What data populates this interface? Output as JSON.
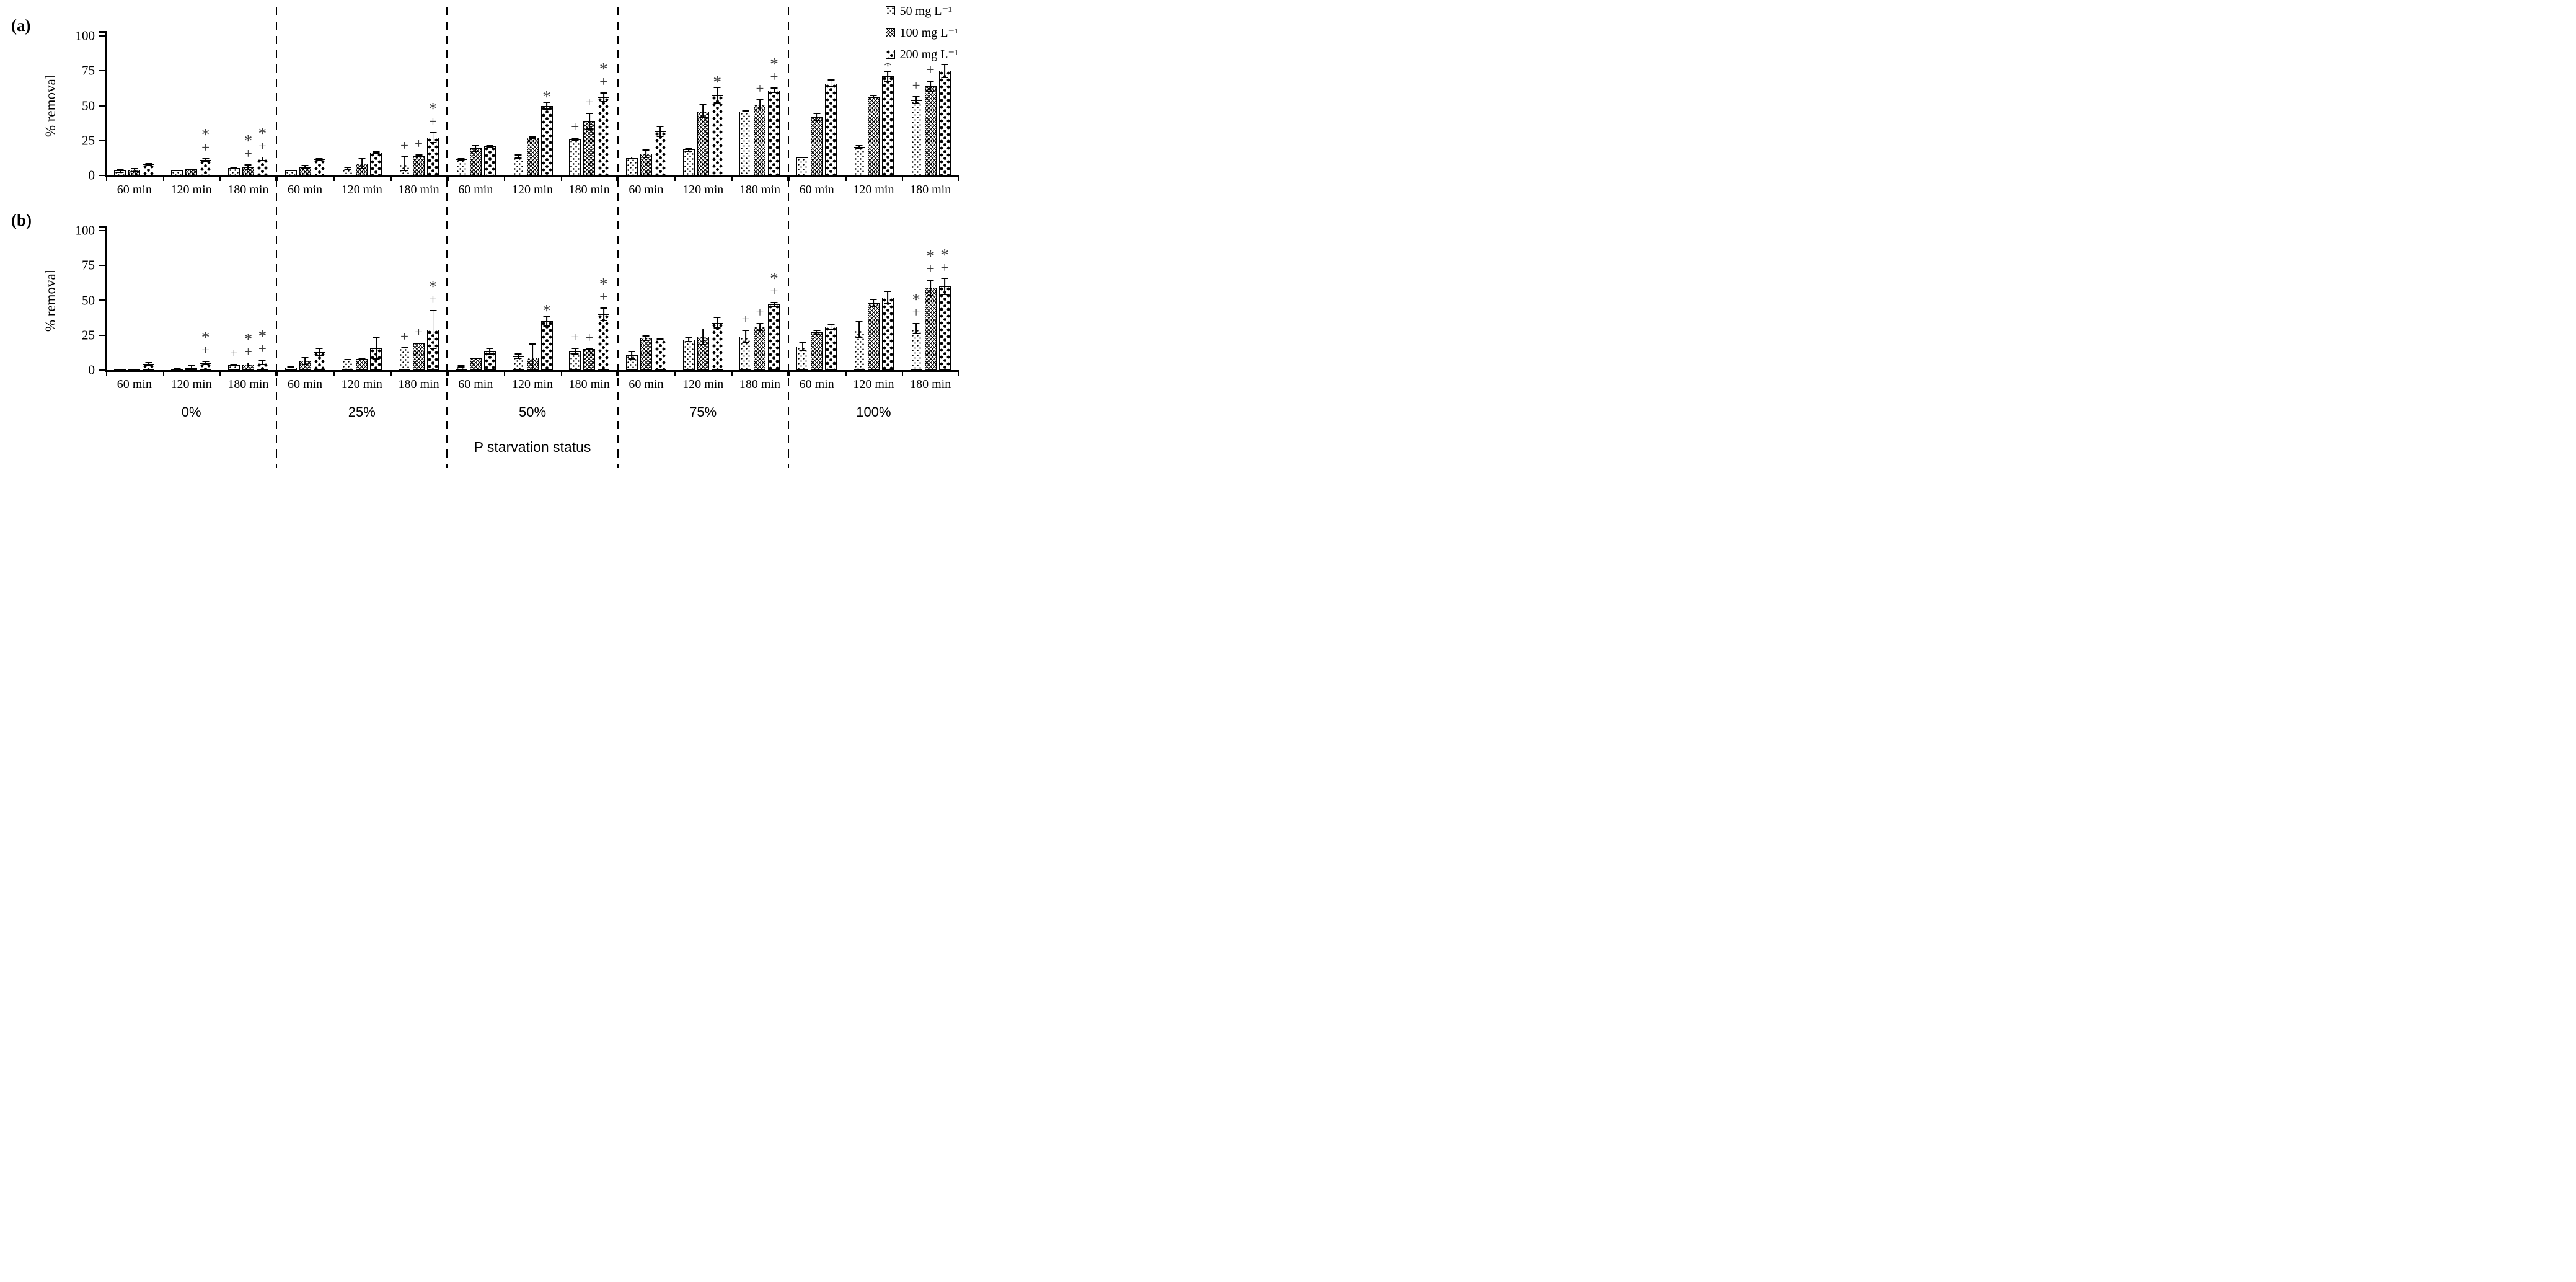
{
  "figure": {
    "panel_a_letter": "(a)",
    "panel_b_letter": "(b)"
  },
  "chart_data": {
    "type": "bar",
    "title": "",
    "ylabel": "% removal",
    "xlabel": "P starvation status",
    "ylim": [
      0,
      100
    ],
    "yticks": [
      0,
      25,
      50,
      75,
      100
    ],
    "grid": false,
    "legend_position": "top-right",
    "annotation_symbols": [
      "*",
      "+"
    ],
    "series": [
      {
        "label": "50 mg L⁻¹",
        "pattern": "small-dots"
      },
      {
        "label": "100 mg L⁻¹",
        "pattern": "crosshatch"
      },
      {
        "label": "200 mg L⁻¹",
        "pattern": "large-dots"
      }
    ],
    "time_labels": [
      "60 min",
      "120 min",
      "180 min"
    ],
    "statuses": [
      "0%",
      "25%",
      "50%",
      "75%",
      "100%"
    ],
    "panels": [
      {
        "id": "a",
        "label": "(a)",
        "sections": [
          {
            "status": "0%",
            "times": [
              {
                "time": "60 min",
                "bars": [
                  {
                    "v": 3.5,
                    "e": 1.5,
                    "a": ""
                  },
                  {
                    "v": 4,
                    "e": 1.5,
                    "a": ""
                  },
                  {
                    "v": 8,
                    "e": 1,
                    "a": ""
                  }
                ]
              },
              {
                "time": "120 min",
                "bars": [
                  {
                    "v": 3.5,
                    "e": 0.5,
                    "a": ""
                  },
                  {
                    "v": 4.5,
                    "e": 0.5,
                    "a": ""
                  },
                  {
                    "v": 11,
                    "e": 1.5,
                    "a": "*+"
                  }
                ]
              },
              {
                "time": "180 min",
                "bars": [
                  {
                    "v": 5.5,
                    "e": 0.5,
                    "a": ""
                  },
                  {
                    "v": 6,
                    "e": 2,
                    "a": "*+"
                  },
                  {
                    "v": 12,
                    "e": 1.5,
                    "a": "*+"
                  }
                ]
              }
            ]
          },
          {
            "status": "25%",
            "times": [
              {
                "time": "60 min",
                "bars": [
                  {
                    "v": 3.5,
                    "e": 0.5,
                    "a": ""
                  },
                  {
                    "v": 6,
                    "e": 1.5,
                    "a": ""
                  },
                  {
                    "v": 11.5,
                    "e": 1,
                    "a": ""
                  }
                ]
              },
              {
                "time": "120 min",
                "bars": [
                  {
                    "v": 5,
                    "e": 1,
                    "a": ""
                  },
                  {
                    "v": 8.5,
                    "e": 4,
                    "a": ""
                  },
                  {
                    "v": 16.5,
                    "e": 0.8,
                    "a": ""
                  }
                ]
              },
              {
                "time": "180 min",
                "bars": [
                  {
                    "v": 8.5,
                    "e": 5.5,
                    "a": "+"
                  },
                  {
                    "v": 14,
                    "e": 1,
                    "a": "+"
                  },
                  {
                    "v": 27,
                    "e": 4,
                    "a": "*+"
                  }
                ]
              }
            ]
          },
          {
            "status": "50%",
            "times": [
              {
                "time": "60 min",
                "bars": [
                  {
                    "v": 11.5,
                    "e": 0.8,
                    "a": ""
                  },
                  {
                    "v": 19.5,
                    "e": 2.5,
                    "a": ""
                  },
                  {
                    "v": 21,
                    "e": 1,
                    "a": ""
                  }
                ]
              },
              {
                "time": "120 min",
                "bars": [
                  {
                    "v": 13.5,
                    "e": 1.5,
                    "a": ""
                  },
                  {
                    "v": 27,
                    "e": 0.8,
                    "a": ""
                  },
                  {
                    "v": 50,
                    "e": 3,
                    "a": "*"
                  }
                ]
              },
              {
                "time": "180 min",
                "bars": [
                  {
                    "v": 26,
                    "e": 1,
                    "a": "+"
                  },
                  {
                    "v": 39,
                    "e": 6,
                    "a": "+"
                  },
                  {
                    "v": 56,
                    "e": 3.5,
                    "a": "*+"
                  }
                ]
              }
            ]
          },
          {
            "status": "75%",
            "times": [
              {
                "time": "60 min",
                "bars": [
                  {
                    "v": 12.5,
                    "e": 1,
                    "a": ""
                  },
                  {
                    "v": 15.5,
                    "e": 3,
                    "a": ""
                  },
                  {
                    "v": 31.5,
                    "e": 4,
                    "a": ""
                  }
                ]
              },
              {
                "time": "120 min",
                "bars": [
                  {
                    "v": 18.5,
                    "e": 1.5,
                    "a": ""
                  },
                  {
                    "v": 46,
                    "e": 5,
                    "a": ""
                  },
                  {
                    "v": 57.5,
                    "e": 6,
                    "a": "*"
                  }
                ]
              },
              {
                "time": "180 min",
                "bars": [
                  {
                    "v": 46,
                    "e": 0.5,
                    "a": ""
                  },
                  {
                    "v": 50.5,
                    "e": 4,
                    "a": "+"
                  },
                  {
                    "v": 61,
                    "e": 2,
                    "a": "*+"
                  }
                ]
              }
            ]
          },
          {
            "status": "100%",
            "times": [
              {
                "time": "60 min",
                "bars": [
                  {
                    "v": 13,
                    "e": 0.5,
                    "a": ""
                  },
                  {
                    "v": 42,
                    "e": 3,
                    "a": ""
                  },
                  {
                    "v": 66,
                    "e": 3,
                    "a": ""
                  }
                ]
              },
              {
                "time": "120 min",
                "bars": [
                  {
                    "v": 20.5,
                    "e": 1.5,
                    "a": ""
                  },
                  {
                    "v": 56,
                    "e": 1.5,
                    "a": ""
                  },
                  {
                    "v": 71,
                    "e": 4,
                    "a": "*"
                  }
                ]
              },
              {
                "time": "180 min",
                "bars": [
                  {
                    "v": 54,
                    "e": 3,
                    "a": "+"
                  },
                  {
                    "v": 64,
                    "e": 4,
                    "a": "+"
                  },
                  {
                    "v": 75,
                    "e": 5,
                    "a": "*+"
                  }
                ]
              }
            ]
          }
        ]
      },
      {
        "id": "b",
        "label": "(b)",
        "sections": [
          {
            "status": "0%",
            "times": [
              {
                "time": "60 min",
                "bars": [
                  {
                    "v": 0.5,
                    "e": 0,
                    "a": ""
                  },
                  {
                    "v": 0.3,
                    "e": 0,
                    "a": ""
                  },
                  {
                    "v": 4.5,
                    "e": 1.5,
                    "a": ""
                  }
                ]
              },
              {
                "time": "120 min",
                "bars": [
                  {
                    "v": 1,
                    "e": 0.2,
                    "a": ""
                  },
                  {
                    "v": 1.5,
                    "e": 2,
                    "a": ""
                  },
                  {
                    "v": 5,
                    "e": 1.5,
                    "a": "*+"
                  }
                ]
              },
              {
                "time": "180 min",
                "bars": [
                  {
                    "v": 3.5,
                    "e": 1,
                    "a": "+"
                  },
                  {
                    "v": 4,
                    "e": 1.5,
                    "a": "*+"
                  },
                  {
                    "v": 5.5,
                    "e": 2,
                    "a": "*+"
                  }
                ]
              }
            ]
          },
          {
            "status": "25%",
            "times": [
              {
                "time": "60 min",
                "bars": [
                  {
                    "v": 2,
                    "e": 0.3,
                    "a": ""
                  },
                  {
                    "v": 6.5,
                    "e": 3,
                    "a": ""
                  },
                  {
                    "v": 13,
                    "e": 3,
                    "a": ""
                  }
                ]
              },
              {
                "time": "120 min",
                "bars": [
                  {
                    "v": 7.5,
                    "e": 0.5,
                    "a": ""
                  },
                  {
                    "v": 8,
                    "e": 0.5,
                    "a": ""
                  },
                  {
                    "v": 15.5,
                    "e": 8,
                    "a": ""
                  }
                ]
              },
              {
                "time": "180 min",
                "bars": [
                  {
                    "v": 16,
                    "e": 0.5,
                    "a": "+"
                  },
                  {
                    "v": 19,
                    "e": 0.5,
                    "a": "+"
                  },
                  {
                    "v": 29,
                    "e": 14,
                    "a": "*+"
                  }
                ]
              }
            ]
          },
          {
            "status": "50%",
            "times": [
              {
                "time": "60 min",
                "bars": [
                  {
                    "v": 3,
                    "e": 1,
                    "a": ""
                  },
                  {
                    "v": 8.5,
                    "e": 0.5,
                    "a": ""
                  },
                  {
                    "v": 13.5,
                    "e": 2.5,
                    "a": ""
                  }
                ]
              },
              {
                "time": "120 min",
                "bars": [
                  {
                    "v": 10,
                    "e": 2,
                    "a": ""
                  },
                  {
                    "v": 9,
                    "e": 10,
                    "a": ""
                  },
                  {
                    "v": 35,
                    "e": 4,
                    "a": "*"
                  }
                ]
              },
              {
                "time": "180 min",
                "bars": [
                  {
                    "v": 13.5,
                    "e": 2.5,
                    "a": "+"
                  },
                  {
                    "v": 15,
                    "e": 0.5,
                    "a": "+"
                  },
                  {
                    "v": 40,
                    "e": 5,
                    "a": "*+"
                  }
                ]
              }
            ]
          },
          {
            "status": "75%",
            "times": [
              {
                "time": "60 min",
                "bars": [
                  {
                    "v": 10.5,
                    "e": 3,
                    "a": ""
                  },
                  {
                    "v": 23,
                    "e": 2,
                    "a": ""
                  },
                  {
                    "v": 22,
                    "e": 0.5,
                    "a": ""
                  }
                ]
              },
              {
                "time": "120 min",
                "bars": [
                  {
                    "v": 22,
                    "e": 2,
                    "a": ""
                  },
                  {
                    "v": 24,
                    "e": 6,
                    "a": ""
                  },
                  {
                    "v": 34,
                    "e": 4,
                    "a": ""
                  }
                ]
              },
              {
                "time": "180 min",
                "bars": [
                  {
                    "v": 24,
                    "e": 5,
                    "a": "+"
                  },
                  {
                    "v": 31,
                    "e": 3,
                    "a": "+"
                  },
                  {
                    "v": 47,
                    "e": 2,
                    "a": "*+"
                  }
                ]
              }
            ]
          },
          {
            "status": "100%",
            "times": [
              {
                "time": "60 min",
                "bars": [
                  {
                    "v": 17,
                    "e": 3,
                    "a": ""
                  },
                  {
                    "v": 27,
                    "e": 2,
                    "a": ""
                  },
                  {
                    "v": 31,
                    "e": 2,
                    "a": ""
                  }
                ]
              },
              {
                "time": "120 min",
                "bars": [
                  {
                    "v": 29,
                    "e": 6,
                    "a": ""
                  },
                  {
                    "v": 48,
                    "e": 3,
                    "a": ""
                  },
                  {
                    "v": 52,
                    "e": 5,
                    "a": ""
                  }
                ]
              },
              {
                "time": "180 min",
                "bars": [
                  {
                    "v": 30,
                    "e": 4,
                    "a": "*+"
                  },
                  {
                    "v": 59,
                    "e": 6,
                    "a": "*+"
                  },
                  {
                    "v": 60,
                    "e": 6,
                    "a": "*+"
                  }
                ]
              }
            ]
          }
        ]
      }
    ]
  }
}
